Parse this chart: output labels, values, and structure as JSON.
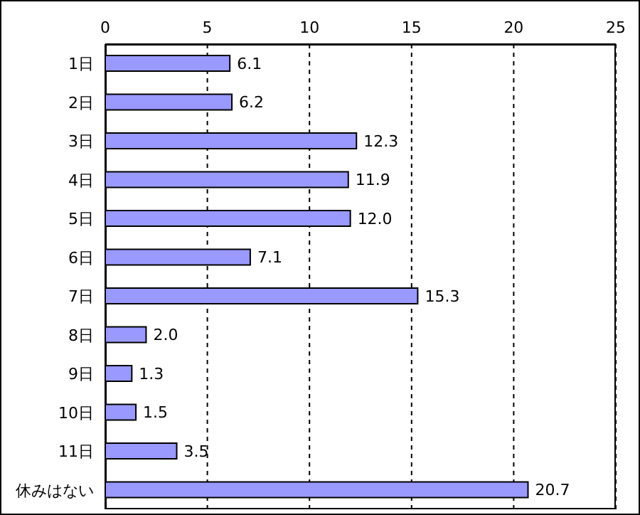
{
  "chart_data": {
    "type": "bar",
    "orientation": "horizontal",
    "categories": [
      "1日",
      "2日",
      "3日",
      "4日",
      "5日",
      "6日",
      "7日",
      "8日",
      "9日",
      "10日",
      "11日",
      "休みはない"
    ],
    "values": [
      6.1,
      6.2,
      12.3,
      11.9,
      12.0,
      7.1,
      15.3,
      2.0,
      1.3,
      1.5,
      3.5,
      20.7
    ],
    "color": "#9999ff",
    "xlim": [
      0,
      25
    ],
    "xticks": [
      0,
      5,
      10,
      15,
      20,
      25
    ],
    "grid": "x",
    "value_labels": [
      "6.1",
      "6.2",
      "12.3",
      "11.9",
      "12.0",
      "7.1",
      "15.3",
      "2.0",
      "1.3",
      "1.5",
      "3.5",
      "20.7"
    ]
  }
}
